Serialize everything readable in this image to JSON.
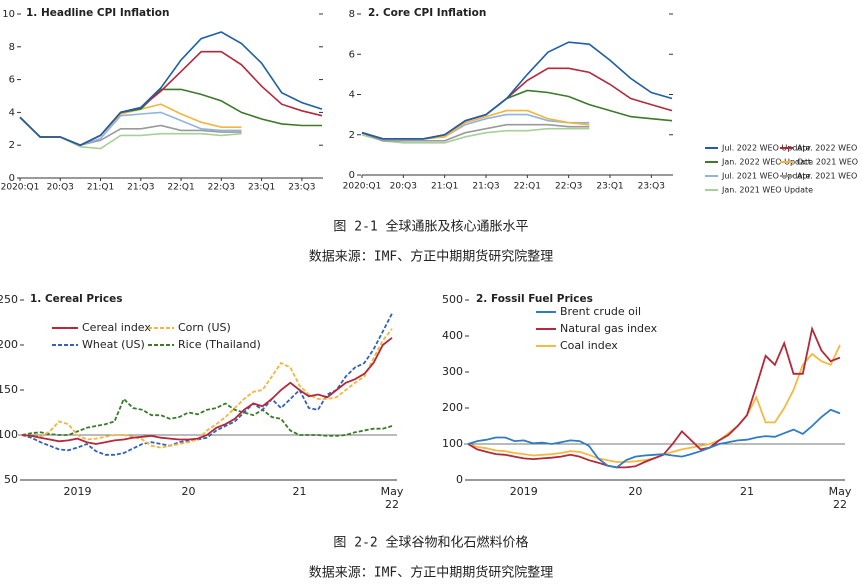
{
  "captions": [
    "图 2-1 全球通胀及核心通胀水平",
    "数据来源：IMF、方正中期期货研究院整理",
    "图 2-2 全球谷物和化石燃料价格",
    "数据来源：IMF、方正中期期货研究院整理"
  ],
  "chart_data": [
    {
      "type": "line",
      "title": "1. Headline CPI Inflation",
      "categories": [
        "2020:Q1",
        null,
        "20:Q3",
        null,
        "21:Q1",
        null,
        "21:Q3",
        null,
        "22:Q1",
        null,
        "22:Q3",
        null,
        "23:Q1",
        null,
        "23:Q3",
        null
      ],
      "ylim": [
        0,
        10
      ],
      "yticks": [
        0,
        2,
        4,
        6,
        8,
        10
      ],
      "legend": "right",
      "series": [
        {
          "name": "Jul. 2022 WEO Update",
          "color": "#1f5fa8",
          "values": [
            3.7,
            2.5,
            2.5,
            2.0,
            2.6,
            4.0,
            4.3,
            5.5,
            7.2,
            8.5,
            8.9,
            8.2,
            7.0,
            5.2,
            4.6,
            4.2
          ]
        },
        {
          "name": "Apr. 2022 WEO",
          "color": "#b5283a",
          "values": [
            3.7,
            2.5,
            2.5,
            2.0,
            2.6,
            4.0,
            4.3,
            5.3,
            6.5,
            7.7,
            7.7,
            6.9,
            5.6,
            4.5,
            4.1,
            3.8
          ]
        },
        {
          "name": "Jan. 2022 WEO Update",
          "color": "#3a7a28",
          "values": [
            3.7,
            2.5,
            2.5,
            2.0,
            2.6,
            4.0,
            4.2,
            5.4,
            5.4,
            5.1,
            4.7,
            4.0,
            3.6,
            3.3,
            3.2,
            3.2
          ]
        },
        {
          "name": "Oct. 2021 WEO",
          "color": "#f2b53d",
          "values": [
            3.7,
            2.5,
            2.5,
            2.0,
            2.6,
            3.9,
            4.2,
            4.5,
            3.9,
            3.4,
            3.1,
            3.1,
            null,
            null,
            null,
            null
          ]
        },
        {
          "name": "Jul. 2021 WEO Update",
          "color": "#8fb4e0",
          "values": [
            3.7,
            2.5,
            2.5,
            2.0,
            2.4,
            3.8,
            3.9,
            4.0,
            3.5,
            3.0,
            2.9,
            2.9,
            null,
            null,
            null,
            null
          ]
        },
        {
          "name": "Apr. 2021 WEO",
          "color": "#9a9a9a",
          "values": [
            3.7,
            2.5,
            2.5,
            2.0,
            2.3,
            3.0,
            3.0,
            3.2,
            2.9,
            2.9,
            2.8,
            2.8,
            null,
            null,
            null,
            null
          ]
        },
        {
          "name": "Jan. 2021 WEO Update",
          "color": "#a8cf9a",
          "values": [
            3.7,
            2.5,
            2.5,
            1.9,
            1.8,
            2.6,
            2.6,
            2.7,
            2.7,
            2.7,
            2.6,
            2.7,
            null,
            null,
            null,
            null
          ]
        }
      ]
    },
    {
      "type": "line",
      "title": "2. Core CPI Inflation",
      "categories": [
        "2020:Q1",
        null,
        "20:Q3",
        null,
        "21:Q1",
        null,
        "21:Q3",
        null,
        "22:Q1",
        null,
        "22:Q3",
        null,
        "23:Q1",
        null,
        "23:Q3",
        null
      ],
      "ylim": [
        0,
        8
      ],
      "yticks": [
        0,
        2,
        4,
        6,
        8
      ],
      "series": [
        {
          "color": "#1f5fa8",
          "values": [
            2.1,
            1.8,
            1.8,
            1.8,
            2.0,
            2.7,
            3.0,
            3.8,
            5.0,
            6.1,
            6.6,
            6.5,
            5.7,
            4.8,
            4.1,
            3.8
          ]
        },
        {
          "color": "#b5283a",
          "values": [
            2.1,
            1.8,
            1.8,
            1.8,
            2.0,
            2.7,
            3.0,
            3.8,
            4.7,
            5.3,
            5.3,
            5.1,
            4.5,
            3.8,
            3.5,
            3.2
          ]
        },
        {
          "color": "#3a7a28",
          "values": [
            2.1,
            1.8,
            1.8,
            1.8,
            2.0,
            2.7,
            3.0,
            3.8,
            4.2,
            4.1,
            3.9,
            3.5,
            3.2,
            2.9,
            2.8,
            2.7
          ]
        },
        {
          "color": "#f2b53d",
          "values": [
            2.1,
            1.8,
            1.8,
            1.8,
            1.9,
            2.6,
            2.9,
            3.2,
            3.2,
            2.8,
            2.6,
            2.5,
            null,
            null,
            null,
            null
          ]
        },
        {
          "color": "#8fb4e0",
          "values": [
            2.1,
            1.8,
            1.8,
            1.8,
            1.9,
            2.5,
            2.8,
            3.0,
            3.0,
            2.7,
            2.6,
            2.6,
            null,
            null,
            null,
            null
          ]
        },
        {
          "color": "#9a9a9a",
          "values": [
            2.1,
            1.7,
            1.7,
            1.7,
            1.7,
            2.1,
            2.3,
            2.5,
            2.5,
            2.5,
            2.4,
            2.4,
            null,
            null,
            null,
            null
          ]
        },
        {
          "color": "#a8cf9a",
          "values": [
            2.0,
            1.7,
            1.6,
            1.6,
            1.6,
            1.9,
            2.1,
            2.2,
            2.2,
            2.3,
            2.3,
            2.3,
            null,
            null,
            null,
            null
          ]
        }
      ]
    },
    {
      "type": "line",
      "title": "1. Cereal Prices",
      "categories": [
        null,
        null,
        null,
        null,
        null,
        null,
        "2019",
        null,
        null,
        null,
        null,
        null,
        null,
        null,
        null,
        null,
        null,
        null,
        "20",
        null,
        null,
        null,
        null,
        null,
        null,
        null,
        null,
        null,
        null,
        null,
        "21",
        null,
        null,
        null,
        null,
        null,
        null,
        null,
        null,
        null,
        "May 22"
      ],
      "ylim": [
        50,
        250
      ],
      "yticks": [
        50,
        100,
        150,
        200,
        250
      ],
      "refline": 100,
      "legend": "upper left",
      "series": [
        {
          "name": "Cereal index",
          "color": "#b5283a",
          "dashed": false,
          "values": [
            100,
            99,
            97,
            95,
            93,
            94,
            96,
            92,
            90,
            92,
            94,
            95,
            97,
            98,
            99,
            97,
            96,
            95,
            95,
            96,
            100,
            108,
            112,
            118,
            128,
            135,
            132,
            140,
            150,
            158,
            150,
            143,
            145,
            142,
            150,
            158,
            162,
            168,
            180,
            200,
            208
          ]
        },
        {
          "name": "Corn (US)",
          "color": "#f2b53d",
          "dashed": true,
          "values": [
            100,
            99,
            98,
            104,
            115,
            112,
            100,
            95,
            96,
            98,
            100,
            100,
            98,
            95,
            88,
            86,
            88,
            90,
            92,
            95,
            105,
            112,
            120,
            130,
            140,
            148,
            150,
            165,
            180,
            175,
            155,
            145,
            140,
            140,
            142,
            150,
            158,
            165,
            185,
            205,
            218
          ]
        },
        {
          "name": "Wheat (US)",
          "color": "#2f62b8",
          "dashed": true,
          "values": [
            100,
            97,
            92,
            88,
            84,
            83,
            86,
            90,
            82,
            78,
            78,
            80,
            85,
            90,
            92,
            90,
            88,
            92,
            94,
            95,
            97,
            105,
            110,
            115,
            125,
            135,
            128,
            140,
            130,
            140,
            150,
            130,
            128,
            145,
            150,
            165,
            175,
            180,
            195,
            215,
            235
          ]
        },
        {
          "name": "Rice (Thailand)",
          "color": "#3a7a28",
          "dashed": true,
          "values": [
            100,
            102,
            103,
            101,
            100,
            100,
            104,
            108,
            110,
            112,
            115,
            140,
            130,
            128,
            122,
            122,
            118,
            120,
            125,
            123,
            128,
            130,
            135,
            128,
            125,
            122,
            128,
            120,
            118,
            105,
            100,
            100,
            100,
            99,
            99,
            100,
            103,
            105,
            107,
            107,
            110
          ]
        }
      ]
    },
    {
      "type": "line",
      "title": "2. Fossil Fuel Prices",
      "categories": [
        null,
        null,
        null,
        null,
        null,
        null,
        "2019",
        null,
        null,
        null,
        null,
        null,
        null,
        null,
        null,
        null,
        null,
        null,
        "20",
        null,
        null,
        null,
        null,
        null,
        null,
        null,
        null,
        null,
        null,
        null,
        "21",
        null,
        null,
        null,
        null,
        null,
        null,
        null,
        null,
        null,
        "May 22"
      ],
      "ylim": [
        0,
        500
      ],
      "yticks": [
        0,
        100,
        200,
        300,
        400,
        500
      ],
      "refline": 100,
      "legend": "upper left",
      "series": [
        {
          "name": "Brent crude oil",
          "color": "#2f7cc4",
          "dashed": false,
          "values": [
            100,
            108,
            112,
            118,
            118,
            108,
            110,
            102,
            104,
            100,
            105,
            110,
            108,
            95,
            60,
            40,
            35,
            55,
            65,
            68,
            70,
            72,
            68,
            65,
            72,
            80,
            90,
            100,
            105,
            110,
            112,
            118,
            122,
            120,
            130,
            140,
            128,
            150,
            175,
            195,
            185
          ]
        },
        {
          "name": "Natural gas index",
          "color": "#b5283a",
          "dashed": false,
          "values": [
            100,
            85,
            78,
            72,
            70,
            65,
            60,
            58,
            60,
            62,
            65,
            70,
            65,
            55,
            48,
            40,
            35,
            35,
            38,
            50,
            60,
            70,
            100,
            135,
            110,
            85,
            90,
            110,
            125,
            150,
            180,
            260,
            345,
            320,
            380,
            295,
            295,
            420,
            360,
            330,
            340
          ]
        },
        {
          "name": "Coal index",
          "color": "#f5b942",
          "dashed": false,
          "values": [
            100,
            92,
            88,
            82,
            80,
            75,
            72,
            68,
            70,
            72,
            75,
            80,
            78,
            70,
            60,
            55,
            50,
            50,
            52,
            55,
            60,
            70,
            78,
            85,
            90,
            95,
            100,
            110,
            130,
            150,
            180,
            230,
            160,
            160,
            200,
            250,
            320,
            350,
            330,
            320,
            375
          ]
        }
      ]
    }
  ]
}
